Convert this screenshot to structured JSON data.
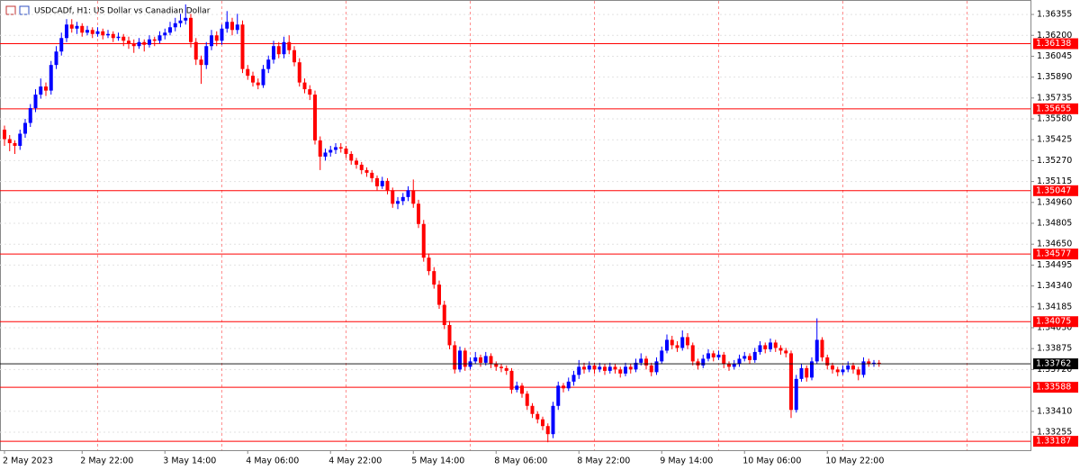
{
  "chart_data": {
    "type": "candlestick",
    "title": "USDCADf, H1:  US Dollar vs Canadian Dollar",
    "up_color": "#0000ff",
    "down_color": "#ff0000",
    "level_color": "#ff0000",
    "price_line_color": "#000000",
    "grid": true,
    "ylim": [
      1.33121,
      1.36449
    ],
    "yticks": [
      1.36355,
      {
        "value": 1.362,
        "label": "1.36200"
      },
      1.36045,
      {
        "value": 1.3589,
        "label": "1.35890"
      },
      1.35735,
      {
        "value": 1.3558,
        "label": "1.35580"
      },
      1.35425,
      {
        "value": 1.3527,
        "label": "1.35270"
      },
      1.35115,
      {
        "value": 1.3496,
        "label": "1.34960"
      },
      1.34805,
      {
        "value": 1.3465,
        "label": "1.34650"
      },
      1.34495,
      {
        "value": 1.3434,
        "label": "1.34340"
      },
      1.34185,
      {
        "value": 1.3403,
        "label": "1.34030"
      },
      1.33875,
      {
        "value": 1.3372,
        "label": "1.33720"
      },
      {
        "value": 1.3341,
        "label": "1.33410"
      },
      1.33255
    ],
    "levels": [
      1.36138,
      1.35655,
      1.35047,
      1.34577,
      1.34075,
      1.33588,
      1.33187
    ],
    "last_price": 1.33762,
    "categories": [
      "2 May 2023",
      null,
      null,
      null,
      null,
      null,
      null,
      null,
      null,
      null,
      null,
      null,
      null,
      null,
      null,
      "2 May 22:00",
      null,
      null,
      null,
      null,
      null,
      null,
      null,
      null,
      null,
      null,
      null,
      null,
      null,
      null,
      null,
      "3 May 14:00",
      null,
      null,
      null,
      null,
      null,
      null,
      null,
      null,
      null,
      null,
      null,
      null,
      null,
      null,
      null,
      "4 May 06:00",
      null,
      null,
      null,
      null,
      null,
      null,
      null,
      null,
      null,
      null,
      null,
      null,
      null,
      null,
      null,
      "4 May 22:00",
      null,
      null,
      null,
      null,
      null,
      null,
      null,
      null,
      null,
      null,
      null,
      null,
      null,
      null,
      null,
      "5 May 14:00",
      null,
      null,
      null,
      null,
      null,
      null,
      null,
      null,
      null,
      null,
      null,
      null,
      null,
      null,
      null,
      "8 May 06:00",
      null,
      null,
      null,
      null,
      null,
      null,
      null,
      null,
      null,
      null,
      null,
      null,
      null,
      null,
      null,
      "8 May 22:00",
      null,
      null,
      null,
      null,
      null,
      null,
      null,
      null,
      null,
      null,
      null,
      null,
      null,
      null,
      null,
      "9 May 14:00",
      null,
      null,
      null,
      null,
      null,
      null,
      null,
      null,
      null,
      null,
      null,
      null,
      null,
      null,
      null,
      "10 May 06:00",
      null,
      null,
      null,
      null,
      null,
      null,
      null,
      null,
      null,
      null,
      null,
      null,
      null,
      null,
      null,
      "10 May 22:00",
      null,
      null,
      null,
      null,
      null,
      null,
      null,
      null,
      null,
      null
    ],
    "candles": [
      [
        1.355,
        1.3553,
        1.3538,
        1.3543
      ],
      [
        1.3543,
        1.3546,
        1.3534,
        1.354
      ],
      [
        1.354,
        1.3542,
        1.3532,
        1.3538
      ],
      [
        1.3538,
        1.355,
        1.3535,
        1.3547
      ],
      [
        1.3547,
        1.3558,
        1.3544,
        1.3555
      ],
      [
        1.3555,
        1.3569,
        1.3552,
        1.3566
      ],
      [
        1.3566,
        1.358,
        1.3563,
        1.3576
      ],
      [
        1.3576,
        1.3588,
        1.3573,
        1.3582
      ],
      [
        1.3582,
        1.3585,
        1.3575,
        1.3579
      ],
      [
        1.3579,
        1.3601,
        1.3576,
        1.3598
      ],
      [
        1.3598,
        1.3612,
        1.3595,
        1.3608
      ],
      [
        1.3608,
        1.3622,
        1.3605,
        1.3618
      ],
      [
        1.3618,
        1.3632,
        1.3615,
        1.3628
      ],
      [
        1.3628,
        1.3632,
        1.3622,
        1.3625
      ],
      [
        1.3625,
        1.363,
        1.3621,
        1.3627
      ],
      [
        1.3627,
        1.3629,
        1.3619,
        1.3622
      ],
      [
        1.3622,
        1.3627,
        1.362,
        1.3624
      ],
      [
        1.3624,
        1.3626,
        1.3618,
        1.3621
      ],
      [
        1.3621,
        1.3626,
        1.3619,
        1.3623
      ],
      [
        1.3623,
        1.3625,
        1.3617,
        1.362
      ],
      [
        1.362,
        1.3624,
        1.3618,
        1.3621
      ],
      [
        1.3621,
        1.3623,
        1.3615,
        1.3618
      ],
      [
        1.3618,
        1.3622,
        1.3616,
        1.3619
      ],
      [
        1.3619,
        1.3621,
        1.3612,
        1.3616
      ],
      [
        1.3616,
        1.3619,
        1.361,
        1.3614
      ],
      [
        1.3614,
        1.3617,
        1.3607,
        1.3612
      ],
      [
        1.3612,
        1.3618,
        1.361,
        1.3615
      ],
      [
        1.3615,
        1.3617,
        1.3608,
        1.3613
      ],
      [
        1.3613,
        1.362,
        1.3611,
        1.3617
      ],
      [
        1.3617,
        1.3619,
        1.3612,
        1.3616
      ],
      [
        1.3616,
        1.3623,
        1.3614,
        1.362
      ],
      [
        1.362,
        1.3625,
        1.3617,
        1.3622
      ],
      [
        1.3622,
        1.363,
        1.362,
        1.3626
      ],
      [
        1.3626,
        1.3633,
        1.3623,
        1.3629
      ],
      [
        1.3629,
        1.3636,
        1.3626,
        1.3631
      ],
      [
        1.3631,
        1.3643,
        1.3628,
        1.3633
      ],
      [
        1.3633,
        1.3636,
        1.3611,
        1.3615
      ],
      [
        1.3615,
        1.3618,
        1.3598,
        1.3602
      ],
      [
        1.3602,
        1.3605,
        1.3584,
        1.3598
      ],
      [
        1.3598,
        1.3615,
        1.3595,
        1.3612
      ],
      [
        1.3612,
        1.3624,
        1.3609,
        1.362
      ],
      [
        1.362,
        1.3623,
        1.3612,
        1.3616
      ],
      [
        1.3616,
        1.3628,
        1.3613,
        1.3625
      ],
      [
        1.3625,
        1.3638,
        1.3622,
        1.363
      ],
      [
        1.363,
        1.3633,
        1.362,
        1.3624
      ],
      [
        1.3624,
        1.3636,
        1.3621,
        1.3628
      ],
      [
        1.3628,
        1.3631,
        1.3592,
        1.3595
      ],
      [
        1.3595,
        1.3598,
        1.3587,
        1.359
      ],
      [
        1.359,
        1.3593,
        1.3582,
        1.3585
      ],
      [
        1.3585,
        1.3588,
        1.358,
        1.3583
      ],
      [
        1.3583,
        1.3598,
        1.3581,
        1.3595
      ],
      [
        1.3595,
        1.3605,
        1.3592,
        1.3602
      ],
      [
        1.3602,
        1.3616,
        1.3599,
        1.3612
      ],
      [
        1.3612,
        1.3615,
        1.3603,
        1.3606
      ],
      [
        1.3606,
        1.3619,
        1.3603,
        1.3615
      ],
      [
        1.3615,
        1.362,
        1.3606,
        1.3609
      ],
      [
        1.3609,
        1.3612,
        1.3597,
        1.36
      ],
      [
        1.36,
        1.3603,
        1.3582,
        1.3585
      ],
      [
        1.3585,
        1.3588,
        1.3577,
        1.358
      ],
      [
        1.358,
        1.3583,
        1.3572,
        1.3576
      ],
      [
        1.3576,
        1.3579,
        1.3539,
        1.3542
      ],
      [
        1.3542,
        1.3545,
        1.352,
        1.353
      ],
      [
        1.353,
        1.3536,
        1.3527,
        1.3533
      ],
      [
        1.3533,
        1.3538,
        1.353,
        1.3535
      ],
      [
        1.3535,
        1.354,
        1.3532,
        1.3537
      ],
      [
        1.3537,
        1.354,
        1.3533,
        1.3536
      ],
      [
        1.3536,
        1.3538,
        1.3529,
        1.3532
      ],
      [
        1.3532,
        1.3534,
        1.3524,
        1.3527
      ],
      [
        1.3527,
        1.3529,
        1.3521,
        1.3524
      ],
      [
        1.3524,
        1.3526,
        1.3517,
        1.352
      ],
      [
        1.352,
        1.3522,
        1.3515,
        1.3518
      ],
      [
        1.3518,
        1.352,
        1.3511,
        1.3514
      ],
      [
        1.3514,
        1.3516,
        1.3505,
        1.3508
      ],
      [
        1.3508,
        1.3515,
        1.3506,
        1.3512
      ],
      [
        1.3512,
        1.3514,
        1.3502,
        1.3505
      ],
      [
        1.3505,
        1.3507,
        1.3492,
        1.3495
      ],
      [
        1.3495,
        1.35,
        1.3491,
        1.3497
      ],
      [
        1.3497,
        1.3503,
        1.3494,
        1.35
      ],
      [
        1.35,
        1.3508,
        1.3497,
        1.3505
      ],
      [
        1.3505,
        1.3513,
        1.3492,
        1.3495
      ],
      [
        1.3495,
        1.3498,
        1.3477,
        1.348
      ],
      [
        1.348,
        1.3483,
        1.3452,
        1.3455
      ],
      [
        1.3455,
        1.3458,
        1.3442,
        1.3445
      ],
      [
        1.3445,
        1.3448,
        1.3432,
        1.3435
      ],
      [
        1.3435,
        1.3438,
        1.3417,
        1.342
      ],
      [
        1.342,
        1.3423,
        1.3402,
        1.3405
      ],
      [
        1.3405,
        1.3408,
        1.3387,
        1.339
      ],
      [
        1.339,
        1.3393,
        1.3369,
        1.3372
      ],
      [
        1.3372,
        1.3389,
        1.337,
        1.3386
      ],
      [
        1.3386,
        1.3388,
        1.3371,
        1.3374
      ],
      [
        1.3374,
        1.3381,
        1.3372,
        1.3378
      ],
      [
        1.3378,
        1.3385,
        1.3376,
        1.3381
      ],
      [
        1.3381,
        1.3383,
        1.3374,
        1.3377
      ],
      [
        1.3377,
        1.3385,
        1.3375,
        1.3382
      ],
      [
        1.3382,
        1.3384,
        1.3373,
        1.3376
      ],
      [
        1.3376,
        1.3378,
        1.3371,
        1.3374
      ],
      [
        1.3374,
        1.3376,
        1.337,
        1.3373
      ],
      [
        1.3373,
        1.3375,
        1.3368,
        1.3371
      ],
      [
        1.3371,
        1.3373,
        1.3354,
        1.3357
      ],
      [
        1.3357,
        1.3363,
        1.3355,
        1.336
      ],
      [
        1.336,
        1.3362,
        1.3351,
        1.3354
      ],
      [
        1.3354,
        1.3356,
        1.3342,
        1.3345
      ],
      [
        1.3345,
        1.3347,
        1.3336,
        1.3339
      ],
      [
        1.3339,
        1.3341,
        1.3332,
        1.3335
      ],
      [
        1.3335,
        1.3337,
        1.3327,
        1.333
      ],
      [
        1.333,
        1.3332,
        1.3318,
        1.3324
      ],
      [
        1.3324,
        1.3348,
        1.3321,
        1.3345
      ],
      [
        1.3345,
        1.3363,
        1.3342,
        1.336
      ],
      [
        1.336,
        1.3362,
        1.3355,
        1.3358
      ],
      [
        1.3358,
        1.3366,
        1.3356,
        1.3363
      ],
      [
        1.3363,
        1.3371,
        1.336,
        1.3368
      ],
      [
        1.3368,
        1.3379,
        1.3365,
        1.3374
      ],
      [
        1.3374,
        1.3377,
        1.3369,
        1.3372
      ],
      [
        1.3372,
        1.3378,
        1.337,
        1.3375
      ],
      [
        1.3375,
        1.3377,
        1.3369,
        1.3372
      ],
      [
        1.3372,
        1.3377,
        1.337,
        1.3374
      ],
      [
        1.3374,
        1.3376,
        1.3368,
        1.3371
      ],
      [
        1.3371,
        1.3377,
        1.3369,
        1.3374
      ],
      [
        1.3374,
        1.3376,
        1.3369,
        1.3372
      ],
      [
        1.3372,
        1.3374,
        1.3366,
        1.3369
      ],
      [
        1.3369,
        1.3377,
        1.3367,
        1.3374
      ],
      [
        1.3374,
        1.3376,
        1.3369,
        1.3372
      ],
      [
        1.3372,
        1.338,
        1.337,
        1.3377
      ],
      [
        1.3377,
        1.3384,
        1.3375,
        1.338
      ],
      [
        1.338,
        1.3382,
        1.3372,
        1.3375
      ],
      [
        1.3375,
        1.3377,
        1.3367,
        1.337
      ],
      [
        1.337,
        1.3381,
        1.3368,
        1.3378
      ],
      [
        1.3378,
        1.3389,
        1.3376,
        1.3386
      ],
      [
        1.3386,
        1.3398,
        1.3384,
        1.3394
      ],
      [
        1.3394,
        1.3397,
        1.3387,
        1.339
      ],
      [
        1.339,
        1.3393,
        1.3385,
        1.3388
      ],
      [
        1.3388,
        1.3401,
        1.3386,
        1.3396
      ],
      [
        1.3396,
        1.3399,
        1.3387,
        1.339
      ],
      [
        1.339,
        1.3392,
        1.3375,
        1.3378
      ],
      [
        1.3378,
        1.338,
        1.3372,
        1.3375
      ],
      [
        1.3375,
        1.3383,
        1.3373,
        1.338
      ],
      [
        1.338,
        1.3387,
        1.3378,
        1.3384
      ],
      [
        1.3384,
        1.3386,
        1.3378,
        1.3381
      ],
      [
        1.3381,
        1.3386,
        1.3379,
        1.3383
      ],
      [
        1.3383,
        1.3385,
        1.3373,
        1.3376
      ],
      [
        1.3376,
        1.3378,
        1.3371,
        1.3374
      ],
      [
        1.3374,
        1.3379,
        1.3372,
        1.3376
      ],
      [
        1.3376,
        1.3383,
        1.3374,
        1.338
      ],
      [
        1.338,
        1.3385,
        1.3378,
        1.3382
      ],
      [
        1.3382,
        1.3384,
        1.3376,
        1.3379
      ],
      [
        1.3379,
        1.3388,
        1.3377,
        1.3385
      ],
      [
        1.3385,
        1.3393,
        1.3383,
        1.339
      ],
      [
        1.339,
        1.3392,
        1.3384,
        1.3387
      ],
      [
        1.3387,
        1.3395,
        1.3385,
        1.3392
      ],
      [
        1.3392,
        1.3394,
        1.3385,
        1.3388
      ],
      [
        1.3388,
        1.339,
        1.3383,
        1.3386
      ],
      [
        1.3386,
        1.3388,
        1.3381,
        1.3384
      ],
      [
        1.3384,
        1.3386,
        1.3336,
        1.3342
      ],
      [
        1.3342,
        1.3368,
        1.334,
        1.3365
      ],
      [
        1.3365,
        1.3376,
        1.3363,
        1.3373
      ],
      [
        1.3373,
        1.3375,
        1.3363,
        1.3366
      ],
      [
        1.3366,
        1.3381,
        1.3364,
        1.3378
      ],
      [
        1.3378,
        1.341,
        1.3376,
        1.3394
      ],
      [
        1.3394,
        1.3396,
        1.3378,
        1.3381
      ],
      [
        1.3381,
        1.3383,
        1.3372,
        1.3375
      ],
      [
        1.3375,
        1.3377,
        1.3369,
        1.3372
      ],
      [
        1.3372,
        1.3374,
        1.3367,
        1.337
      ],
      [
        1.337,
        1.3375,
        1.3368,
        1.3372
      ],
      [
        1.3372,
        1.3378,
        1.337,
        1.3375
      ],
      [
        1.3375,
        1.3377,
        1.3369,
        1.3372
      ],
      [
        1.3372,
        1.3374,
        1.3364,
        1.3368
      ],
      [
        1.3368,
        1.3381,
        1.3366,
        1.3378
      ],
      [
        1.3378,
        1.338,
        1.3374,
        1.3376
      ],
      [
        1.3376,
        1.3379,
        1.3374,
        1.3377
      ],
      [
        1.3377,
        1.3379,
        1.3374,
        1.3376
      ]
    ]
  }
}
